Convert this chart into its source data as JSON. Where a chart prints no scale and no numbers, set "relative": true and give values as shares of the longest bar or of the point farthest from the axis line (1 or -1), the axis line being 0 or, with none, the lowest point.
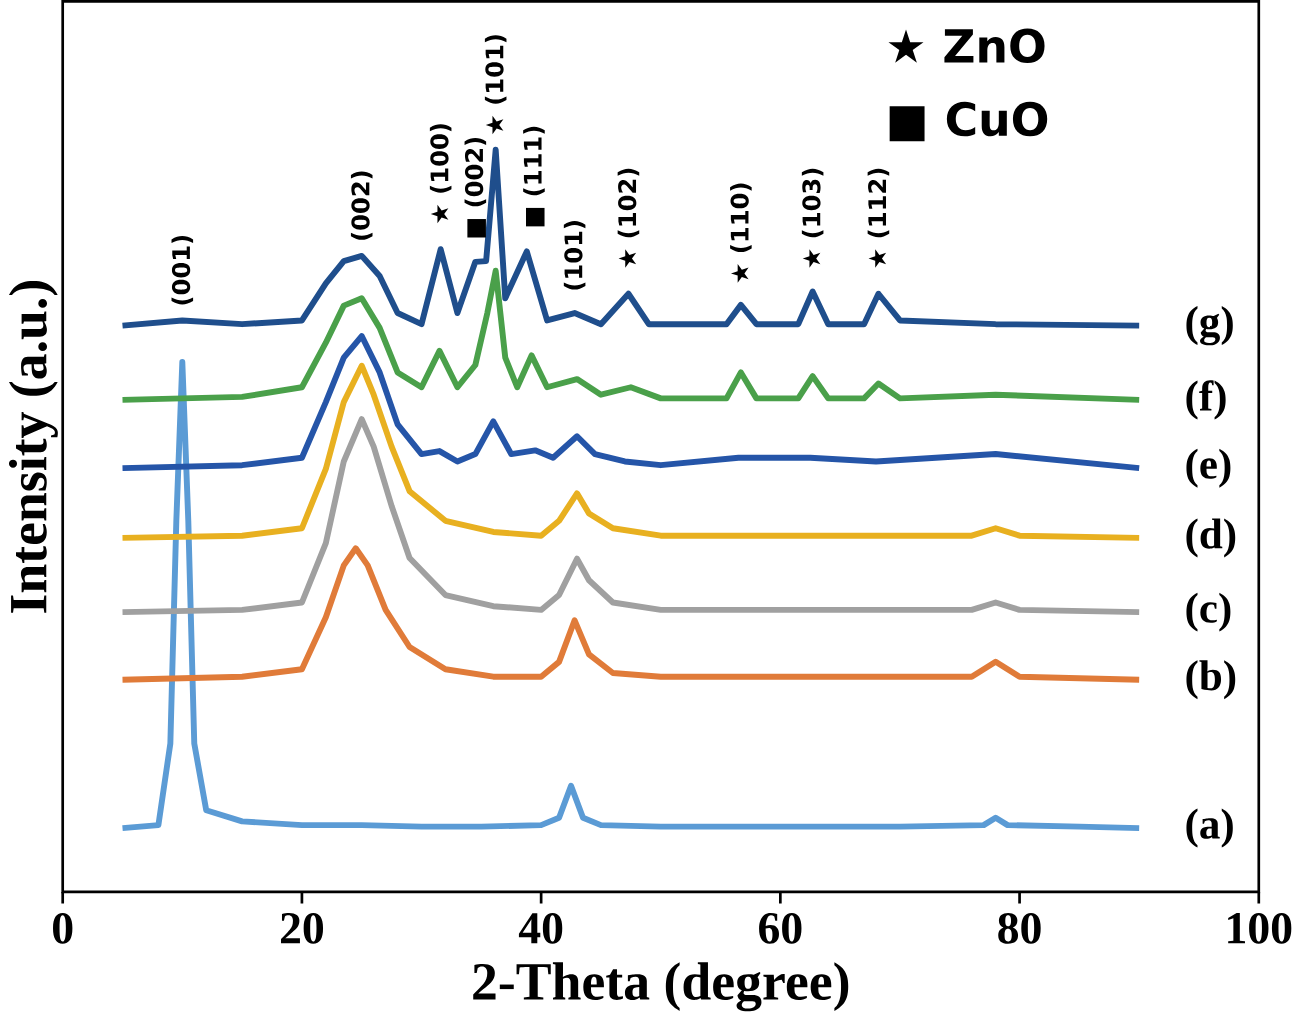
{
  "chart_data": {
    "type": "line",
    "relative": true,
    "xlabel": "2-Theta (degree)",
    "ylabel": "Intensity (a.u.)",
    "xlim": [
      0,
      100
    ],
    "xticks": [
      0,
      20,
      40,
      60,
      80,
      100
    ],
    "legend": false,
    "grid": false,
    "marker": "none",
    "line_style": "solid",
    "series": [
      {
        "name": "(a)",
        "color": "#5b9bd5",
        "x": [
          5,
          8,
          9,
          9.5,
          10,
          10.5,
          11,
          12,
          15,
          20,
          25,
          30,
          35,
          40,
          41.5,
          42.5,
          43.5,
          45,
          50,
          60,
          70,
          77,
          78,
          79,
          85,
          90
        ],
        "values": [
          0.086,
          0.09,
          0.2,
          0.5,
          0.714,
          0.5,
          0.2,
          0.11,
          0.095,
          0.09,
          0.09,
          0.088,
          0.088,
          0.09,
          0.1,
          0.143,
          0.1,
          0.09,
          0.088,
          0.088,
          0.088,
          0.09,
          0.1,
          0.09,
          0.088,
          0.086
        ]
      },
      {
        "name": "(b)",
        "color": "#e07b39",
        "x": [
          5,
          15,
          20,
          22,
          23.5,
          24.5,
          25.5,
          27,
          29,
          32,
          36,
          40,
          41.5,
          42.8,
          44,
          46,
          50,
          60,
          70,
          76,
          78,
          80,
          90
        ],
        "values": [
          0.286,
          0.29,
          0.3,
          0.37,
          0.44,
          0.463,
          0.44,
          0.38,
          0.33,
          0.3,
          0.29,
          0.29,
          0.31,
          0.366,
          0.32,
          0.295,
          0.29,
          0.29,
          0.29,
          0.29,
          0.31,
          0.29,
          0.286
        ]
      },
      {
        "name": "(c)",
        "color": "#a0a0a0",
        "x": [
          5,
          15,
          20,
          22,
          23.5,
          25,
          26,
          27.5,
          29,
          32,
          36,
          40,
          41.5,
          43,
          44,
          46,
          50,
          60,
          70,
          76,
          78,
          80,
          90
        ],
        "values": [
          0.377,
          0.38,
          0.39,
          0.47,
          0.58,
          0.637,
          0.6,
          0.52,
          0.45,
          0.4,
          0.385,
          0.38,
          0.4,
          0.449,
          0.42,
          0.39,
          0.38,
          0.38,
          0.38,
          0.38,
          0.39,
          0.38,
          0.377
        ]
      },
      {
        "name": "(d)",
        "color": "#e8b020",
        "x": [
          5,
          15,
          20,
          22,
          23.5,
          25,
          26,
          27.5,
          29,
          32,
          36,
          40,
          41.5,
          43,
          44,
          46,
          50,
          60,
          70,
          76,
          78,
          80,
          90
        ],
        "values": [
          0.477,
          0.48,
          0.49,
          0.57,
          0.66,
          0.709,
          0.67,
          0.6,
          0.54,
          0.5,
          0.485,
          0.48,
          0.5,
          0.537,
          0.51,
          0.49,
          0.48,
          0.48,
          0.48,
          0.48,
          0.49,
          0.48,
          0.477
        ]
      },
      {
        "name": "(e)",
        "color": "#2555a8",
        "x": [
          5,
          15,
          20,
          22,
          23.5,
          25,
          26.5,
          28,
          30,
          31.5,
          33,
          34.5,
          36,
          37.5,
          39.5,
          41,
          43,
          44.5,
          47,
          50,
          56.5,
          62.5,
          68,
          78,
          90
        ],
        "values": [
          0.571,
          0.575,
          0.585,
          0.66,
          0.72,
          0.749,
          0.7,
          0.63,
          0.59,
          0.594,
          0.58,
          0.59,
          0.634,
          0.59,
          0.595,
          0.585,
          0.614,
          0.59,
          0.58,
          0.575,
          0.585,
          0.585,
          0.58,
          0.59,
          0.571
        ]
      },
      {
        "name": "(f)",
        "color": "#4aa04a",
        "x": [
          5,
          15,
          20,
          22,
          23.5,
          25,
          26.5,
          28,
          30,
          31.5,
          33,
          34.5,
          35.5,
          36.2,
          37,
          38,
          39.2,
          40.5,
          43,
          45,
          47.5,
          50,
          55.5,
          56.7,
          58,
          61.5,
          62.7,
          64,
          67,
          68.2,
          70,
          78,
          90
        ],
        "values": [
          0.663,
          0.667,
          0.68,
          0.74,
          0.79,
          0.8,
          0.76,
          0.7,
          0.68,
          0.729,
          0.68,
          0.71,
          0.78,
          0.837,
          0.72,
          0.68,
          0.723,
          0.68,
          0.691,
          0.67,
          0.68,
          0.665,
          0.665,
          0.7,
          0.665,
          0.665,
          0.695,
          0.665,
          0.665,
          0.685,
          0.665,
          0.67,
          0.663
        ]
      },
      {
        "name": "(g)",
        "color": "#1f4e8c",
        "x": [
          5,
          10,
          15,
          20,
          22,
          23.5,
          25,
          26.5,
          28,
          30,
          31.6,
          33,
          34.5,
          35.4,
          36.2,
          37,
          38.8,
          40.5,
          42.8,
          45,
          47.3,
          49,
          55.5,
          56.7,
          58,
          61.5,
          62.7,
          64,
          67,
          68.2,
          70,
          78,
          90
        ],
        "values": [
          0.763,
          0.77,
          0.765,
          0.77,
          0.82,
          0.85,
          0.857,
          0.83,
          0.78,
          0.765,
          0.866,
          0.78,
          0.849,
          0.85,
          1,
          0.8,
          0.863,
          0.77,
          0.78,
          0.765,
          0.806,
          0.765,
          0.765,
          0.791,
          0.765,
          0.765,
          0.809,
          0.765,
          0.765,
          0.806,
          0.77,
          0.765,
          0.763
        ]
      }
    ],
    "annotations": [
      {
        "text": "(001)",
        "x": 10,
        "y": 0.77
      },
      {
        "text": "(002)",
        "x": 25,
        "y": 0.857
      },
      {
        "text": "★ (100)",
        "x": 31.6,
        "y": 0.88
      },
      {
        "text": "■ (002)",
        "x": 34.5,
        "y": 0.86
      },
      {
        "text": "★ (101)",
        "x": 36.2,
        "y": 1
      },
      {
        "text": "■ (111)",
        "x": 39.4,
        "y": 0.875
      },
      {
        "text": "(101)",
        "x": 42.8,
        "y": 0.79
      },
      {
        "text": "★ (102)",
        "x": 47.3,
        "y": 0.82
      },
      {
        "text": "★ (110)",
        "x": 56.7,
        "y": 0.8
      },
      {
        "text": "★ (103)",
        "x": 62.7,
        "y": 0.82
      },
      {
        "text": "★ (112)",
        "x": 68.2,
        "y": 0.82
      },
      "★  ZnO",
      "■  CuO"
    ]
  }
}
